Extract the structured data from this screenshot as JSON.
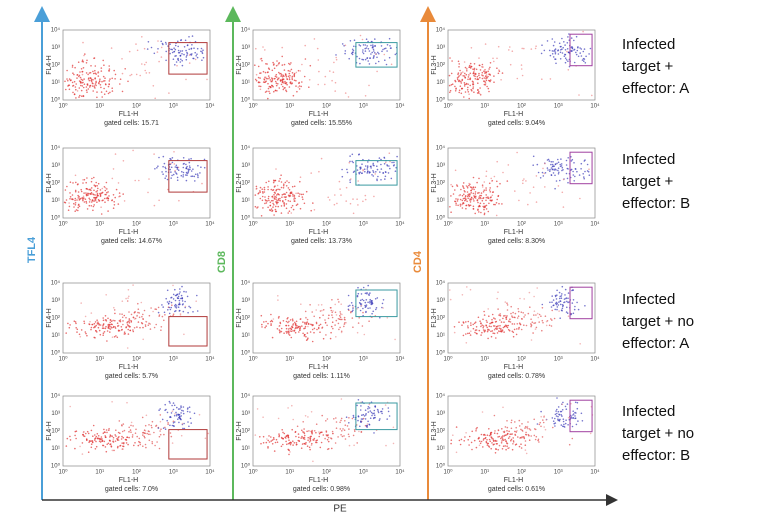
{
  "axes": {
    "left": "TFL4",
    "middle": "CD8",
    "right": "CD4",
    "bottom": "PE"
  },
  "tick_labels": [
    "10⁰",
    "10¹",
    "10²",
    "10³",
    "10⁴"
  ],
  "columns": [
    {
      "y_label": "FL4-H",
      "x_label": "FL1-H",
      "gated": [
        "gated cells: 15.71",
        "gated cells: 14.67%",
        "gated cells: 5.7%",
        "gated cells: 7.0%"
      ]
    },
    {
      "y_label": "FL2-H",
      "x_label": "FL1-H",
      "gated": [
        "gated cells: 15.55%",
        "gated cells: 13.73%",
        "gated cells: 1.11%",
        "gated cells: 0.98%"
      ]
    },
    {
      "y_label": "FL3-H",
      "x_label": "FL1-H",
      "gated": [
        "gated cells: 9.04%",
        "gated cells: 8.30%",
        "gated cells: 0.78%",
        "gated cells: 0.61%"
      ]
    }
  ],
  "row_labels": [
    [
      "Infected",
      "target +",
      "effector: A"
    ],
    [
      "Infected",
      "target +",
      "effector: B"
    ],
    [
      "Infected",
      "target + no",
      "effector: A"
    ],
    [
      "Infected",
      "target + no",
      "effector: B"
    ]
  ]
}
